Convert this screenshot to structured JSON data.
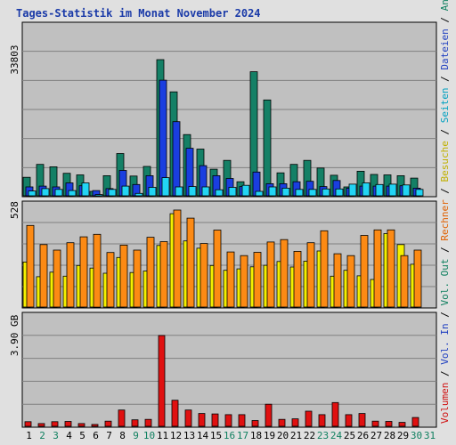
{
  "title": "Tages-Statistik im Monat November 2024",
  "panels": {
    "top": {
      "max_label": "33803"
    },
    "middle": {
      "max_label": "528"
    },
    "bottom": {
      "max_label": "3.90 GB"
    }
  },
  "right_legend": [
    {
      "text": "Volumen",
      "color": "#d01010"
    },
    {
      "text": " / ",
      "color": "#000000"
    },
    {
      "text": "Vol. In",
      "color": "#2040c0"
    },
    {
      "text": " / ",
      "color": "#000000"
    },
    {
      "text": "Vol. Out",
      "color": "#108060"
    },
    {
      "text": " / ",
      "color": "#000000"
    },
    {
      "text": "Rechner",
      "color": "#e06000"
    },
    {
      "text": " / ",
      "color": "#000000"
    },
    {
      "text": "Besuche",
      "color": "#c0b000"
    },
    {
      "text": " / ",
      "color": "#000000"
    },
    {
      "text": "Seiten",
      "color": "#00a0c0"
    },
    {
      "text": " / ",
      "color": "#000000"
    },
    {
      "text": "Dateien",
      "color": "#2040c0"
    },
    {
      "text": " / ",
      "color": "#000000"
    },
    {
      "text": "Anfragen",
      "color": "#108060"
    }
  ],
  "colors": {
    "anfragen": "#148066",
    "dateien": "#1a3ee0",
    "seiten": "#22d4f4",
    "besuche": "#f4f000",
    "rechner": "#fc8a14",
    "volumen": "#e01010",
    "panel_bg": "#c0c0c0",
    "grid": "#808080",
    "weekday": "#000000",
    "weekend": "#108060"
  },
  "chart_data": {
    "type": "bar",
    "categories": [
      "1",
      "2",
      "3",
      "4",
      "5",
      "6",
      "7",
      "8",
      "9",
      "10",
      "11",
      "12",
      "13",
      "14",
      "15",
      "16",
      "17",
      "18",
      "19",
      "20",
      "21",
      "22",
      "23",
      "24",
      "25",
      "26",
      "27",
      "28",
      "29",
      "30",
      "31"
    ],
    "weekend_days": [
      "2",
      "3",
      "9",
      "10",
      "16",
      "17",
      "23",
      "24",
      "30",
      "31"
    ],
    "panels": [
      {
        "name": "hits",
        "max_label": "33803",
        "series": [
          {
            "name": "Anfragen",
            "values": [
              4600,
              7800,
              7200,
              5600,
              5200,
              1100,
              5000,
              10500,
              4900,
              7300,
              33803,
              25800,
              15200,
              11600,
              6600,
              8800,
              3500,
              30800,
              23800,
              5700,
              7800,
              8800,
              6900,
              5100,
              2200,
              6100,
              5300,
              5200,
              5000,
              4400,
              0
            ]
          },
          {
            "name": "Dateien",
            "values": [
              2200,
              2400,
              2200,
              3200,
              2500,
              1300,
              1800,
              6300,
              2800,
              5000,
              28700,
              18400,
              11800,
              7500,
              5000,
              4300,
              2300,
              5900,
              3000,
              3000,
              3500,
              3600,
              2300,
              3800,
              1900,
              2400,
              2400,
              2400,
              2500,
              1900,
              0
            ]
          },
          {
            "name": "Seiten",
            "values": [
              1200,
              1800,
              1600,
              1300,
              3200,
              300,
              1600,
              2400,
              600,
              2100,
              4500,
              2200,
              2300,
              2200,
              1500,
              2100,
              2600,
              1100,
              2200,
              1900,
              1600,
              1600,
              1700,
              1700,
              2900,
              3200,
              2800,
              2900,
              2700,
              1600,
              0
            ]
          }
        ]
      },
      {
        "name": "visits",
        "max_label": "528",
        "series": [
          {
            "name": "Besuche",
            "values": [
              245,
              165,
              190,
              168,
              226,
              212,
              184,
              270,
              188,
              196,
              335,
              508,
              360,
              320,
              226,
              200,
              208,
              219,
              227,
              248,
              218,
              250,
              305,
              168,
              200,
              170,
              150,
              400,
              340,
              233,
              0
            ]
          },
          {
            "name": "Rechner",
            "values": [
              444,
              340,
              310,
              350,
              382,
              396,
              297,
              337,
              310,
              380,
              356,
              528,
              484,
              346,
              419,
              300,
              280,
              298,
              354,
              367,
              303,
              350,
              415,
              290,
              280,
              390,
              420,
              420,
              280,
              310,
              0
            ]
          }
        ]
      },
      {
        "name": "traffic",
        "max_label": "3.90 GB",
        "series": [
          {
            "name": "Volumen",
            "values": [
              0.2,
              0.12,
              0.2,
              0.21,
              0.12,
              0.08,
              0.22,
              0.7,
              0.28,
              0.3,
              3.9,
              1.12,
              0.7,
              0.55,
              0.53,
              0.5,
              0.5,
              0.25,
              0.95,
              0.3,
              0.32,
              0.65,
              0.5,
              1.02,
              0.5,
              0.55,
              0.22,
              0.21,
              0.17,
              0.38,
              0
            ]
          }
        ]
      }
    ]
  }
}
